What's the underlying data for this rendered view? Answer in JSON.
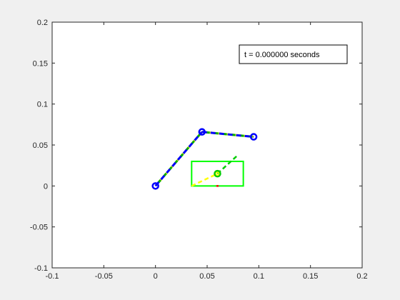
{
  "chart_data": {
    "type": "line",
    "title": "",
    "xlabel": "",
    "ylabel": "",
    "xlim": [
      -0.1,
      0.2
    ],
    "ylim": [
      -0.1,
      0.2
    ],
    "grid": false,
    "x_ticks": [
      -0.1,
      -0.05,
      0,
      0.05,
      0.1,
      0.15,
      0.2
    ],
    "x_tick_labels": [
      "-0.1",
      "-0.05",
      "0",
      "0.05",
      "0.1",
      "0.15",
      "0.2"
    ],
    "y_ticks": [
      -0.1,
      -0.05,
      0,
      0.05,
      0.1,
      0.15,
      0.2
    ],
    "y_tick_labels": [
      "-0.1",
      "-0.05",
      "0",
      "0.05",
      "0.1",
      "0.15",
      "0.2"
    ],
    "annotation": {
      "text": "t = 0.000000 seconds",
      "x": 0.1275,
      "y": 0.1605
    },
    "links": [
      {
        "x": [
          0,
          0.045
        ],
        "y": [
          0,
          0.066
        ],
        "color": "#0000ff",
        "dash_color": "#ffff00",
        "mid_color": "#00aa00"
      },
      {
        "x": [
          0.045,
          0.095
        ],
        "y": [
          0.066,
          0.06
        ],
        "color": "#0000ff",
        "dash_color": "#ffff00",
        "mid_color": "#00aa00"
      }
    ],
    "joints": [
      {
        "x": 0,
        "y": 0,
        "color": "#0000ff"
      },
      {
        "x": 0.045,
        "y": 0.066,
        "color": "#0000ff"
      },
      {
        "x": 0.095,
        "y": 0.06,
        "color": "#0000ff"
      }
    ],
    "box": {
      "x": [
        0.035,
        0.085
      ],
      "y": [
        0,
        0.03
      ],
      "color": "#00ff00"
    },
    "dashed_segments": [
      {
        "x": [
          0.035,
          0.06
        ],
        "y": [
          0.0,
          0.015
        ],
        "color": "#ffff00"
      },
      {
        "x": [
          0.06,
          0.08
        ],
        "y": [
          0.015,
          0.038
        ],
        "color": "#00cc00"
      }
    ],
    "target_marker": {
      "x": 0.06,
      "y": 0.015,
      "color": "#ffff00",
      "edge_color": "#00cc00"
    },
    "red_marker": {
      "x": 0.06,
      "y": 0.0,
      "color": "#ff0000"
    },
    "colors": {
      "figure_background": "#f0f0f0",
      "axes_background": "#ffffff",
      "axis_color": "#262626"
    }
  }
}
